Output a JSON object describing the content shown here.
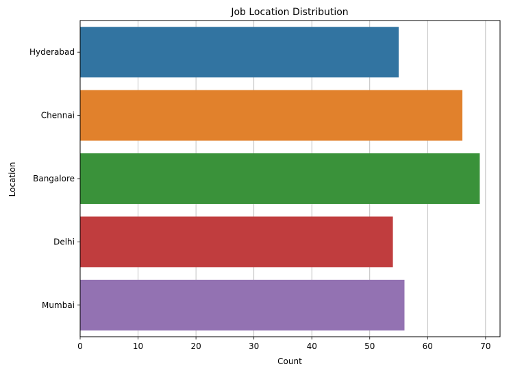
{
  "chart_data": {
    "type": "bar",
    "orientation": "horizontal",
    "title": "Job Location Distribution",
    "xlabel": "Count",
    "ylabel": "Location",
    "categories": [
      "Hyderabad",
      "Chennai",
      "Bangalore",
      "Delhi",
      "Mumbai"
    ],
    "values": [
      55,
      66,
      69,
      54,
      56
    ],
    "colors": [
      "#3274a1",
      "#e1812c",
      "#3a923a",
      "#c03d3e",
      "#9372b2"
    ],
    "xlim": [
      0,
      72.5
    ],
    "xticks": [
      0,
      10,
      20,
      30,
      40,
      50,
      60,
      70
    ],
    "grid": "x"
  }
}
